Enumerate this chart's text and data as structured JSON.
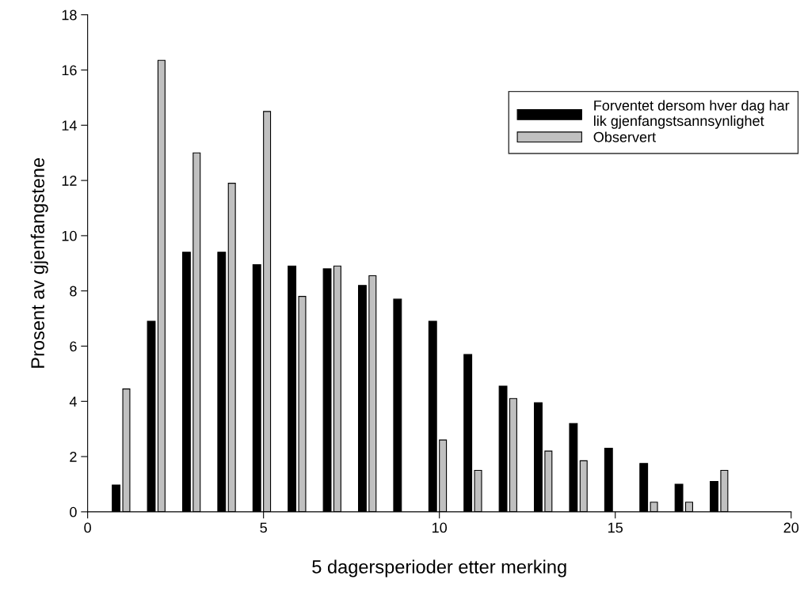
{
  "chart_data": {
    "type": "bar",
    "xlabel": "5 dagersperioder etter merking",
    "ylabel": "Prosent av gjenfangstene",
    "x": [
      1,
      2,
      3,
      4,
      5,
      6,
      7,
      8,
      9,
      10,
      11,
      12,
      13,
      14,
      15,
      16,
      17,
      18
    ],
    "series": [
      {
        "name": "Forventet dersom hver dag har\nlik gjenfangstsannsynlighet",
        "color": "#000000",
        "values": [
          0.97,
          6.9,
          9.4,
          9.4,
          8.95,
          8.9,
          8.8,
          8.2,
          7.7,
          6.9,
          5.7,
          4.55,
          3.95,
          3.2,
          2.3,
          1.75,
          1.0,
          1.1
        ]
      },
      {
        "name": "Observert",
        "color": "#c0c0c0",
        "values": [
          4.45,
          16.35,
          13.0,
          11.9,
          14.5,
          7.8,
          8.9,
          8.55,
          null,
          2.6,
          1.5,
          4.1,
          2.2,
          1.85,
          null,
          0.35,
          0.35,
          1.5
        ]
      }
    ],
    "xlim": [
      0,
      20
    ],
    "xticks": [
      0,
      5,
      10,
      15,
      20
    ],
    "ylim": [
      0,
      18
    ],
    "yticks": [
      0,
      2,
      4,
      6,
      8,
      10,
      12,
      14,
      16,
      18
    ],
    "legend": "top right",
    "grid": false
  }
}
